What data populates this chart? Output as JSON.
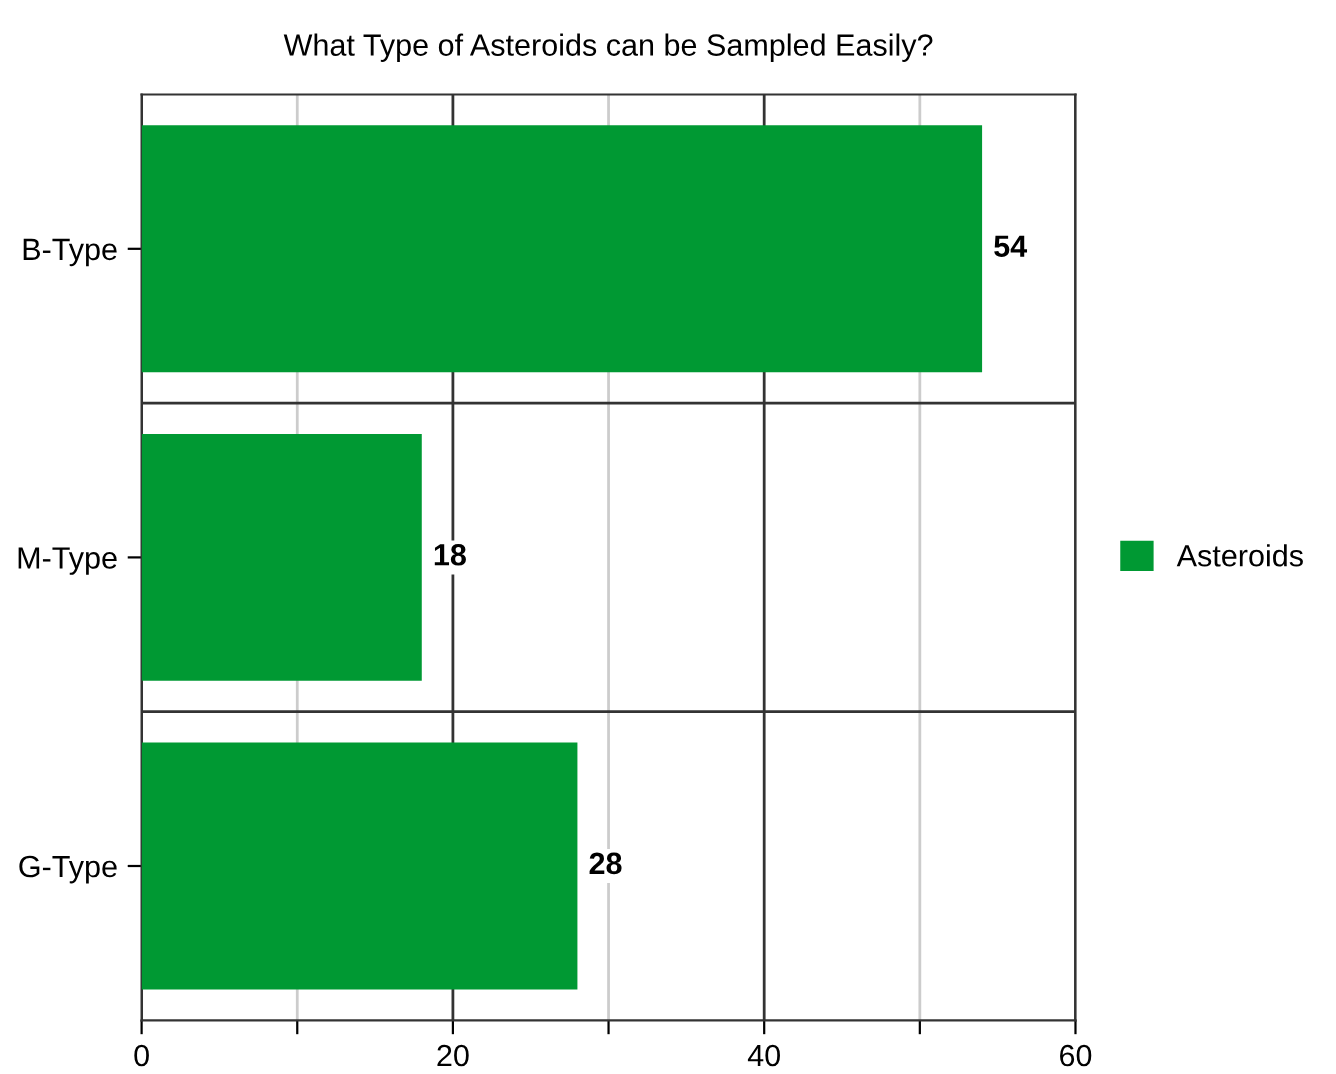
{
  "chart_data": {
    "type": "bar",
    "orientation": "horizontal",
    "title": "What Type of Asteroids can be Sampled Easily?",
    "categories": [
      "B-Type",
      "M-Type",
      "G-Type"
    ],
    "series": [
      {
        "name": "Asteroids",
        "color": "#009933",
        "values": [
          54,
          18,
          28
        ]
      }
    ],
    "xlim": [
      0,
      60
    ],
    "xticks": [
      0,
      {
        "value": 10,
        "label": null
      },
      20,
      {
        "value": 30,
        "label": null
      },
      40,
      {
        "value": 50,
        "label": null
      },
      60
    ],
    "grid": true,
    "legend": "right",
    "data_labels": true
  }
}
